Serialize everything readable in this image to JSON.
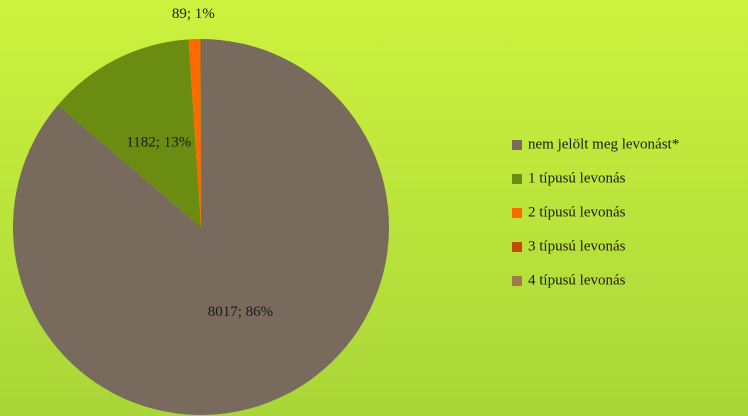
{
  "chart_data": {
    "type": "pie",
    "categories": [
      "nem jelölt meg levonást*",
      "1 típusú levonás",
      "2 típusú levonás",
      "3 típusú levonás",
      "4 típusú levonás"
    ],
    "values": [
      8017,
      1182,
      89,
      6,
      3
    ],
    "value_labels": [
      "8017; 86%",
      "1182; 13%",
      "89; 1%",
      null,
      null
    ],
    "colors": [
      "#786a5c",
      "#6a8c10",
      "#ff6a00",
      "#c04a00",
      "#a07a48"
    ],
    "legend": "right"
  }
}
